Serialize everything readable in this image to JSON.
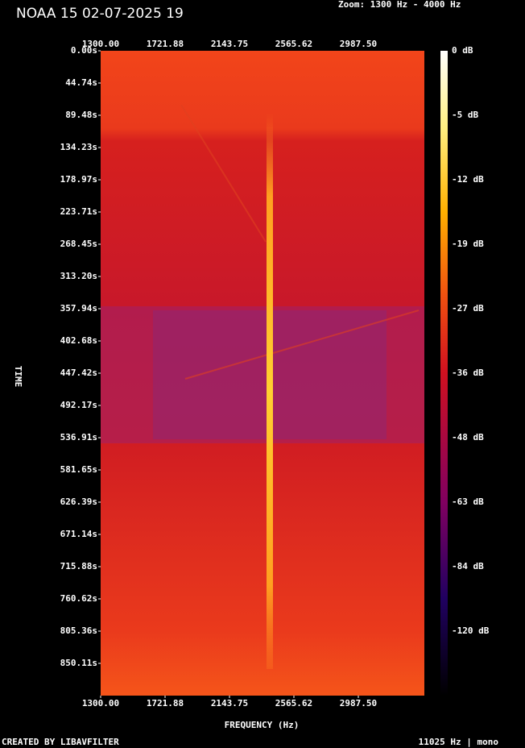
{
  "chart_data": {
    "type": "spectrogram",
    "title": "NOAA 15 02-07-2025 19",
    "zoom": "Zoom: 1300 Hz - 4000 Hz",
    "x_label": "FREQUENCY (Hz)",
    "y_label": "TIME",
    "footer_left": "CREATED BY LIBAVFILTER",
    "footer_right": "11025 Hz | mono",
    "xlim": [
      1300,
      3420
    ],
    "xticks": [
      {
        "value": 1300,
        "label": "1300.00"
      },
      {
        "value": 1721.88,
        "label": "1721.88"
      },
      {
        "value": 2143.75,
        "label": "2143.75"
      },
      {
        "value": 2565.62,
        "label": "2565.62"
      },
      {
        "value": 2987.5,
        "label": "2987.50"
      }
    ],
    "ylim": [
      0,
      894.85
    ],
    "yticks": [
      {
        "value": 0,
        "label": "0.00s"
      },
      {
        "value": 44.74,
        "label": "44.74s"
      },
      {
        "value": 89.48,
        "label": "89.48s"
      },
      {
        "value": 134.23,
        "label": "134.23s"
      },
      {
        "value": 178.97,
        "label": "178.97s"
      },
      {
        "value": 223.71,
        "label": "223.71s"
      },
      {
        "value": 268.45,
        "label": "268.45s"
      },
      {
        "value": 313.2,
        "label": "313.20s"
      },
      {
        "value": 357.94,
        "label": "357.94s"
      },
      {
        "value": 402.68,
        "label": "402.68s"
      },
      {
        "value": 447.42,
        "label": "447.42s"
      },
      {
        "value": 492.17,
        "label": "492.17s"
      },
      {
        "value": 536.91,
        "label": "536.91s"
      },
      {
        "value": 581.65,
        "label": "581.65s"
      },
      {
        "value": 626.39,
        "label": "626.39s"
      },
      {
        "value": 671.14,
        "label": "671.14s"
      },
      {
        "value": 715.88,
        "label": "715.88s"
      },
      {
        "value": 760.62,
        "label": "760.62s"
      },
      {
        "value": 805.36,
        "label": "805.36s"
      },
      {
        "value": 850.11,
        "label": "850.11s"
      }
    ],
    "colorbar_ticks": [
      {
        "value": 0,
        "label": "0 dB"
      },
      {
        "value": -5,
        "label": "-5 dB"
      },
      {
        "value": -12,
        "label": "-12 dB"
      },
      {
        "value": -19,
        "label": "-19 dB"
      },
      {
        "value": -27,
        "label": "-27 dB"
      },
      {
        "value": -36,
        "label": "-36 dB"
      },
      {
        "value": -48,
        "label": "-48 dB"
      },
      {
        "value": -63,
        "label": "-63 dB"
      },
      {
        "value": -84,
        "label": "-84 dB"
      },
      {
        "value": -120,
        "label": "-120 dB"
      }
    ]
  }
}
